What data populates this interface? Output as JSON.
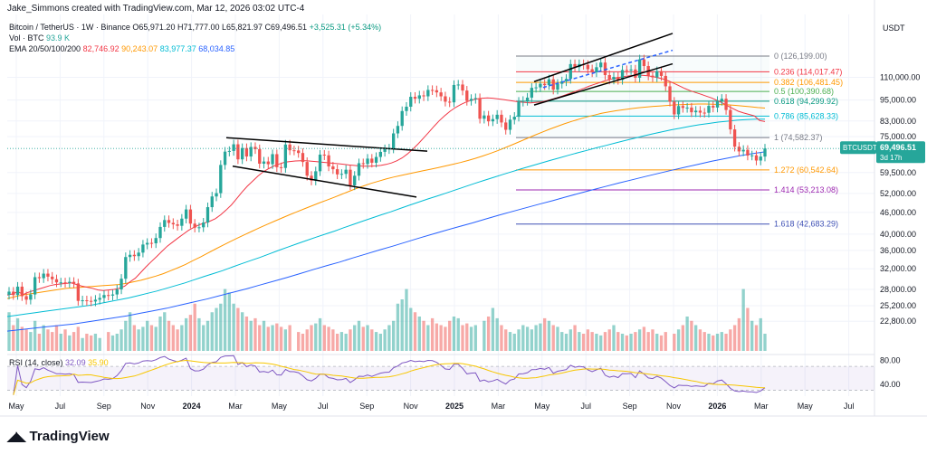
{
  "header": {
    "creator_line": "Jake_Simmons created with TradingView.com, Mar 12, 2026 03:02 UTC-4"
  },
  "legend": {
    "symbol_line": "Bitcoin / TetherUS · 1W · Binance",
    "ohlc": "O65,971.20 H71,777.00 L65,821.97 C69,496.51",
    "change": "+3,525.31 (+5.34%)",
    "vol_label": "Vol · BTC",
    "vol_value": "93.9 K",
    "ema_label": "EMA 20/50/100/200",
    "ema20": "82,746.92",
    "ema50": "90,243.07",
    "ema100": "83,977.37",
    "ema200": "68,034.85"
  },
  "rsi": {
    "label": "RSI (14, close)",
    "value1": "32.09",
    "value2": "35.90",
    "ticks": [
      "80.00",
      "40.00"
    ]
  },
  "brand": {
    "name": "TradingView"
  },
  "price_badge": {
    "symbol": "BTCUSDT",
    "price": "69,496.51",
    "countdown": "3d 17h"
  },
  "chart_data": {
    "type": "candlestick",
    "title": "",
    "currency": "USDT",
    "yscale": "log",
    "ylim": [
      19500,
      165000
    ],
    "y_ticks": [
      "110,000.00",
      "95,000.00",
      "83,000.00",
      "75,000.00",
      "59,500.00",
      "52,000.00",
      "46,000.00",
      "40,000.00",
      "36,000.00",
      "32,000.00",
      "28,000.00",
      "25,200.00",
      "22,800.00"
    ],
    "y_tick_values": [
      110000,
      95000,
      83000,
      75000,
      59500,
      52000,
      46000,
      40000,
      36000,
      32000,
      28000,
      25200,
      22800
    ],
    "x_ticks": [
      "May",
      "Jul",
      "Sep",
      "Nov",
      "2024",
      "Mar",
      "May",
      "Jul",
      "Sep",
      "Nov",
      "2025",
      "Mar",
      "May",
      "Jul",
      "Sep",
      "Nov",
      "2026",
      "Mar",
      "May",
      "Jul"
    ],
    "fib_levels": [
      {
        "ratio": "0",
        "price": 126199,
        "label": "0 (126,199.00)",
        "color": "#787b86"
      },
      {
        "ratio": "0.236",
        "price": 114017.47,
        "label": "0.236 (114,017.47)",
        "color": "#f23645"
      },
      {
        "ratio": "0.382",
        "price": 106481.45,
        "label": "0.382 (106,481.45)",
        "color": "#ff9800"
      },
      {
        "ratio": "0.5",
        "price": 100390.68,
        "label": "0.5 (100,390.68)",
        "color": "#4caf50"
      },
      {
        "ratio": "0.618",
        "price": 94299.92,
        "label": "0.618 (94,299.92)",
        "color": "#089981"
      },
      {
        "ratio": "0.786",
        "price": 85628.33,
        "label": "0.786 (85,628.33)",
        "color": "#00bcd4"
      },
      {
        "ratio": "1",
        "price": 74582.37,
        "label": "1 (74,582.37)",
        "color": "#787b86"
      },
      {
        "ratio": "1.272",
        "price": 60542.64,
        "label": "1.272 (60,542.64)",
        "color": "#ff9800"
      },
      {
        "ratio": "1.414",
        "price": 53213.08,
        "label": "1.414 (53,213.08)",
        "color": "#9c27b0"
      },
      {
        "ratio": "1.618",
        "price": 42683.29,
        "label": "1.618 (42,683.29)",
        "color": "#3f51b5"
      }
    ],
    "last_price": 69496.51,
    "closes": [
      27600,
      27000,
      28500,
      26800,
      26200,
      27100,
      30300,
      30100,
      31000,
      30400,
      29900,
      29300,
      29300,
      29200,
      29400,
      29100,
      26000,
      26100,
      26000,
      25900,
      26200,
      26500,
      27000,
      26900,
      27100,
      28000,
      30000,
      34500,
      35000,
      34700,
      35500,
      37400,
      37800,
      37700,
      39000,
      41900,
      43800,
      43000,
      42600,
      42200,
      44200,
      46900,
      42800,
      41700,
      41800,
      43100,
      47600,
      51000,
      52100,
      62500,
      68100,
      68400,
      71400,
      64800,
      69700,
      66000,
      70200,
      69200,
      63000,
      63900,
      62800,
      67000,
      61600,
      61300,
      71300,
      68700,
      68600,
      67500,
      63700,
      58300,
      56500,
      60000,
      66800,
      66500,
      61900,
      60800,
      58800,
      59000,
      60600,
      54800,
      58300,
      63200,
      62900,
      65100,
      63400,
      65800,
      68000,
      69200,
      69500,
      76600,
      80400,
      88500,
      91000,
      97000,
      95800,
      97900,
      97300,
      101400,
      101200,
      99800,
      97300,
      94000,
      93600,
      104700,
      105000,
      101000,
      94500,
      95700,
      96200,
      84200,
      86000,
      82800,
      84000,
      86400,
      82200,
      78400,
      83700,
      85300,
      94000,
      94500,
      96500,
      102800,
      103100,
      105500,
      104600,
      108600,
      101600,
      105500,
      107200,
      108900,
      119800,
      117500,
      119800,
      119200,
      115900,
      113600,
      117400,
      121000,
      111600,
      108400,
      110300,
      108200,
      115300,
      115200,
      115700,
      109700,
      123500,
      118300,
      111200,
      110000,
      114500,
      111000,
      103800,
      94000,
      86600,
      91400,
      90300,
      90500,
      87800,
      88700,
      87600,
      87500,
      91500,
      90500,
      94500,
      95800,
      89100,
      78600,
      70300,
      68200,
      68900,
      66400,
      66500,
      64300,
      65971,
      69496
    ],
    "ema20_points": [
      27000,
      27200,
      27600,
      27100,
      27500,
      27800,
      28100,
      28400,
      28700,
      28900,
      29000,
      29100,
      29200,
      28900,
      28600,
      28400,
      28200,
      27900,
      27800,
      27900,
      28000,
      28200,
      28600,
      29400,
      30100,
      31200,
      32400,
      33500,
      34600,
      35800,
      37000,
      38000,
      39000,
      40000,
      41000,
      41800,
      42500,
      43000,
      43500,
      44200,
      45300,
      46700,
      48300,
      50300,
      52500,
      54500,
      56300,
      58200,
      59800,
      61000,
      62100,
      62900,
      63600,
      63900,
      64100,
      64200,
      64200,
      64000,
      63800,
      63600,
      63400,
      63200,
      63000,
      62800,
      62500,
      62300,
      62100,
      62000,
      62000,
      62100,
      62300,
      62700,
      63300,
      64200,
      65400,
      67100,
      69200,
      71600,
      74300,
      77200,
      80200,
      83200,
      85900,
      88400,
      90500,
      92300,
      93800,
      94900,
      95700,
      96100,
      96300,
      96100,
      95700,
      95300,
      94800,
      94300,
      93800,
      93500,
      93300,
      93500,
      93800,
      94500,
      95400,
      96400,
      97500,
      98700,
      99900,
      101100,
      102400,
      103800,
      105100,
      106300,
      107500,
      108500,
      109400,
      110200,
      110800,
      111300,
      111500,
      111500,
      111100,
      110500,
      109700,
      108700,
      107400,
      105700,
      104000,
      102300,
      100900,
      99700,
      98600,
      97400,
      96300,
      94800,
      93300,
      91500,
      89900,
      88400,
      87400,
      86600,
      85800,
      83200,
      82700
    ],
    "ema50_points": [
      26400,
      26700,
      27000,
      27200,
      27400,
      27600,
      27800,
      28000,
      28200,
      28300,
      28400,
      28500,
      28600,
      28700,
      28800,
      28900,
      29100,
      29400,
      29700,
      30100,
      30500,
      31000,
      31600,
      32200,
      32900,
      33700,
      34500,
      35400,
      36300,
      37200,
      38100,
      39000,
      39900,
      40800,
      41700,
      42600,
      43500,
      44400,
      45300,
      46200,
      47100,
      48000,
      48900,
      49800,
      50700,
      51700,
      52700,
      53700,
      54600,
      55500,
      56300,
      57100,
      57800,
      58400,
      59000,
      59600,
      60200,
      60800,
      61400,
      62100,
      62800,
      63500,
      64300,
      65200,
      66200,
      67300,
      68500,
      69800,
      71200,
      72700,
      74200,
      75700,
      77200,
      78700,
      80100,
      81500,
      82800,
      84000,
      85200,
      86200,
      87200,
      88000,
      88700,
      89300,
      89900,
      90400,
      90800,
      91200,
      91500,
      91800,
      92100,
      92300,
      92500,
      92600,
      92600,
      92500,
      92300,
      92100,
      91800,
      91400,
      91000,
      90500,
      90200
    ],
    "ema100_points": [
      23500,
      23700,
      23900,
      24100,
      24300,
      24500,
      24700,
      24900,
      25100,
      25300,
      25600,
      25900,
      26200,
      26500,
      26900,
      27300,
      27700,
      28200,
      28700,
      29200,
      29800,
      30400,
      31000,
      31600,
      32300,
      33000,
      33700,
      34400,
      35200,
      36000,
      36800,
      37600,
      38400,
      39200,
      40000,
      40800,
      41700,
      42600,
      43500,
      44400,
      45300,
      46200,
      47200,
      48200,
      49200,
      50200,
      51200,
      52200,
      53300,
      54400,
      55500,
      56600,
      57700,
      58800,
      59900,
      61000,
      62100,
      63200,
      64300,
      65400,
      66500,
      67600,
      68700,
      69800,
      70900,
      72000,
      73100,
      74200,
      75300,
      76400,
      77400,
      78400,
      79300,
      80200,
      81000,
      81700,
      82400,
      82900,
      83400,
      83700,
      84000,
      84000
    ],
    "ema200_points": [
      21400,
      21600,
      21800,
      22000,
      22200,
      22400,
      22700,
      23000,
      23300,
      23600,
      24000,
      24400,
      24800,
      25300,
      25800,
      26300,
      26900,
      27500,
      28100,
      28800,
      29500,
      30200,
      31000,
      31800,
      32600,
      33400,
      34300,
      35200,
      36100,
      37000,
      38000,
      39000,
      40000,
      41000,
      42000,
      43000,
      44100,
      45200,
      46300,
      47400,
      48500,
      49600,
      50800,
      52000,
      53200,
      54400,
      55600,
      56800,
      58000,
      59200,
      60400,
      61600,
      62800,
      64000,
      65100,
      66200,
      67200,
      68000
    ],
    "volume_relative": [
      0.45,
      0.3,
      0.38,
      0.28,
      0.25,
      0.22,
      0.35,
      0.2,
      0.3,
      0.25,
      0.22,
      0.3,
      0.2,
      0.25,
      0.18,
      0.22,
      0.28,
      0.15,
      0.2,
      0.18,
      0.2,
      0.15,
      0.22,
      0.18,
      0.2,
      0.25,
      0.35,
      0.45,
      0.3,
      0.25,
      0.28,
      0.35,
      0.3,
      0.28,
      0.4,
      0.45,
      0.35,
      0.3,
      0.25,
      0.3,
      0.38,
      0.42,
      0.55,
      0.38,
      0.3,
      0.35,
      0.45,
      0.5,
      0.55,
      0.72,
      0.68,
      0.55,
      0.5,
      0.45,
      0.4,
      0.35,
      0.38,
      0.3,
      0.35,
      0.28,
      0.3,
      0.32,
      0.28,
      0.25,
      0.3,
      0.22,
      0.2,
      0.25,
      0.3,
      0.32,
      0.38,
      0.3,
      0.28,
      0.25,
      0.2,
      0.22,
      0.2,
      0.25,
      0.3,
      0.35,
      0.28,
      0.3,
      0.25,
      0.22,
      0.2,
      0.25,
      0.3,
      0.35,
      0.55,
      0.6,
      0.72,
      0.5,
      0.45,
      0.4,
      0.35,
      0.3,
      0.38,
      0.32,
      0.3,
      0.28,
      0.35,
      0.4,
      0.38,
      0.3,
      0.32,
      0.28,
      0.3,
      0.35,
      0.4,
      0.5,
      0.38,
      0.3,
      0.25,
      0.22,
      0.2,
      0.25,
      0.3,
      0.28,
      0.25,
      0.3,
      0.32,
      0.38,
      0.35,
      0.3,
      0.28,
      0.22,
      0.2,
      0.25,
      0.3,
      0.22,
      0.2,
      0.25,
      0.22,
      0.2,
      0.18,
      0.22,
      0.25,
      0.3,
      0.22,
      0.2,
      0.18,
      0.2,
      0.22,
      0.25,
      0.28,
      0.22,
      0.25,
      0.2,
      0.18,
      0.22,
      0.2,
      0.25,
      0.3,
      0.4,
      0.35,
      0.3,
      0.25,
      0.22,
      0.2,
      0.18,
      0.2,
      0.22,
      0.2,
      0.25,
      0.3,
      0.38,
      0.72,
      0.5,
      0.35,
      0.3,
      0.38,
      0.2
    ]
  }
}
